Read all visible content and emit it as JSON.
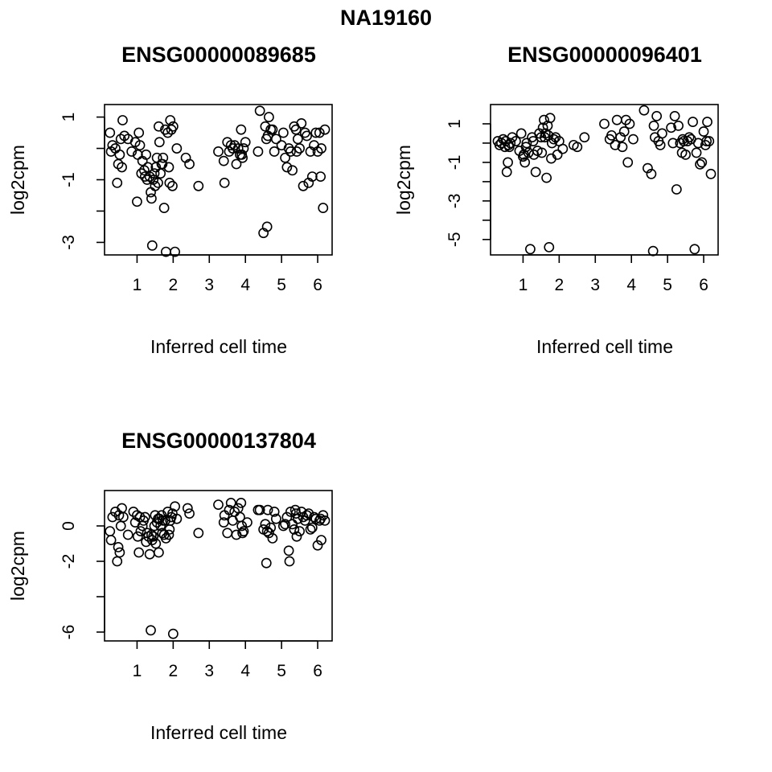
{
  "figure": {
    "title": "NA19160"
  },
  "chart_data": [
    {
      "type": "scatter",
      "title": "ENSG00000089685",
      "xlabel": "Inferred cell time",
      "ylabel": "log2cpm",
      "xlim": [
        0.1,
        6.4
      ],
      "ylim": [
        -3.4,
        1.4
      ],
      "xticks": [
        1,
        2,
        3,
        4,
        5,
        6
      ],
      "xtick_labels": [
        "1",
        "2",
        "3",
        "4",
        "5",
        "6"
      ],
      "yticks": [
        -3,
        -2,
        -1,
        0,
        1
      ],
      "ytick_labels": [
        "-3",
        "",
        "-1",
        "",
        "1"
      ],
      "x": [
        0.25,
        0.28,
        0.32,
        0.4,
        0.45,
        0.48,
        0.52,
        0.55,
        0.58,
        0.6,
        0.65,
        0.75,
        0.85,
        0.95,
        1.0,
        1.02,
        1.05,
        1.08,
        1.12,
        1.15,
        1.2,
        1.22,
        1.25,
        1.28,
        1.3,
        1.35,
        1.38,
        1.4,
        1.42,
        1.45,
        1.48,
        1.5,
        1.52,
        1.55,
        1.58,
        1.6,
        1.62,
        1.65,
        1.68,
        1.7,
        1.72,
        1.75,
        1.78,
        1.8,
        1.85,
        1.88,
        1.9,
        1.92,
        1.95,
        1.98,
        2.0,
        2.05,
        2.1,
        2.35,
        2.45,
        2.7,
        3.25,
        3.4,
        3.42,
        3.5,
        3.55,
        3.6,
        3.65,
        3.7,
        3.75,
        3.8,
        3.85,
        3.88,
        3.9,
        3.92,
        3.95,
        4.0,
        4.35,
        4.4,
        4.5,
        4.55,
        4.58,
        4.6,
        4.62,
        4.65,
        4.7,
        4.75,
        4.8,
        4.85,
        5.0,
        5.05,
        5.1,
        5.15,
        5.2,
        5.25,
        5.3,
        5.35,
        5.4,
        5.42,
        5.45,
        5.5,
        5.55,
        5.6,
        5.65,
        5.7,
        5.75,
        5.8,
        5.85,
        5.9,
        5.95,
        6.0,
        6.05,
        6.08,
        6.1,
        6.15,
        6.2
      ],
      "y": [
        0.5,
        -0.1,
        0.1,
        0.0,
        -1.1,
        -0.5,
        -0.2,
        0.3,
        -0.6,
        0.9,
        0.4,
        0.3,
        -0.1,
        0.2,
        -1.7,
        -0.2,
        0.5,
        0.1,
        -0.8,
        -0.4,
        -0.7,
        -0.9,
        -0.2,
        -1.0,
        -0.6,
        -0.9,
        -1.4,
        -1.6,
        -3.1,
        -1.0,
        -0.8,
        -1.2,
        -0.6,
        -0.3,
        -1.1,
        0.7,
        0.2,
        -0.8,
        -0.5,
        -0.5,
        -0.3,
        -1.9,
        0.6,
        -3.3,
        0.5,
        -0.6,
        -1.1,
        0.9,
        0.6,
        -1.2,
        0.7,
        -3.3,
        0.0,
        -0.3,
        -0.5,
        -1.2,
        -0.1,
        -0.4,
        -1.1,
        0.2,
        -0.1,
        0.1,
        0.0,
        0.1,
        -0.5,
        0.0,
        -0.2,
        0.6,
        -0.2,
        -0.3,
        0.0,
        0.2,
        -0.1,
        1.2,
        -2.7,
        0.7,
        0.3,
        -2.5,
        0.4,
        1.0,
        0.6,
        0.6,
        -0.1,
        0.3,
        0.1,
        0.5,
        -0.3,
        -0.6,
        0.0,
        -0.1,
        -0.7,
        0.7,
        0.6,
        -0.1,
        0.3,
        0.0,
        0.8,
        -1.2,
        0.5,
        0.4,
        -1.1,
        -0.1,
        -0.9,
        0.1,
        0.5,
        -0.1,
        0.5,
        -0.9,
        0.0,
        -1.9,
        0.6
      ]
    },
    {
      "type": "scatter",
      "title": "ENSG00000096401",
      "xlabel": "Inferred cell time",
      "ylabel": "log2cpm",
      "xlim": [
        0.1,
        6.4
      ],
      "ylim": [
        -5.8,
        2.0
      ],
      "xticks": [
        1,
        2,
        3,
        4,
        5,
        6
      ],
      "xtick_labels": [
        "1",
        "2",
        "3",
        "4",
        "5",
        "6"
      ],
      "yticks": [
        -5,
        -4,
        -3,
        -2,
        -1,
        0,
        1
      ],
      "ytick_labels": [
        "-5",
        "",
        "-3",
        "",
        "-1",
        "",
        "1"
      ],
      "x": [
        0.3,
        0.35,
        0.4,
        0.45,
        0.5,
        0.52,
        0.55,
        0.58,
        0.6,
        0.62,
        0.65,
        0.7,
        0.8,
        0.9,
        0.95,
        1.0,
        1.02,
        1.05,
        1.08,
        1.1,
        1.15,
        1.2,
        1.25,
        1.28,
        1.3,
        1.35,
        1.4,
        1.45,
        1.5,
        1.52,
        1.55,
        1.58,
        1.6,
        1.62,
        1.65,
        1.68,
        1.7,
        1.72,
        1.75,
        1.78,
        1.8,
        1.85,
        1.9,
        1.95,
        2.0,
        2.1,
        2.4,
        2.5,
        2.7,
        3.25,
        3.4,
        3.45,
        3.55,
        3.6,
        3.7,
        3.75,
        3.8,
        3.85,
        3.9,
        3.95,
        4.05,
        4.35,
        4.45,
        4.55,
        4.6,
        4.62,
        4.65,
        4.7,
        4.75,
        4.8,
        4.85,
        5.1,
        5.15,
        5.2,
        5.25,
        5.3,
        5.35,
        5.4,
        5.42,
        5.45,
        5.5,
        5.55,
        5.6,
        5.65,
        5.7,
        5.75,
        5.8,
        5.85,
        5.9,
        5.95,
        6.0,
        6.05,
        6.08,
        6.1,
        6.15,
        6.2
      ],
      "y": [
        0.1,
        -0.1,
        0.0,
        0.2,
        -0.2,
        0.1,
        -1.5,
        -1.0,
        -0.1,
        -0.2,
        0.0,
        0.3,
        0.1,
        -0.4,
        0.5,
        -0.7,
        -0.6,
        -1.0,
        -0.2,
        0.0,
        -0.5,
        -5.5,
        0.3,
        0.1,
        -0.6,
        -1.5,
        -0.4,
        0.5,
        0.3,
        -0.5,
        0.8,
        1.2,
        0.3,
        0.5,
        -1.8,
        0.9,
        0.4,
        -5.4,
        1.3,
        -0.8,
        0.0,
        0.2,
        0.3,
        -0.6,
        0.1,
        -0.3,
        -0.1,
        -0.2,
        0.3,
        1.0,
        0.2,
        0.4,
        -0.1,
        1.2,
        0.3,
        -0.2,
        0.6,
        1.2,
        -1.0,
        1.0,
        0.2,
        1.7,
        -1.3,
        -1.6,
        -5.6,
        0.9,
        0.3,
        1.4,
        0.1,
        -0.1,
        0.5,
        0.8,
        0.0,
        1.4,
        -2.4,
        0.9,
        0.0,
        -0.5,
        0.2,
        0.1,
        -0.6,
        0.1,
        0.3,
        0.2,
        1.1,
        -5.5,
        -0.5,
        0.0,
        -1.1,
        -1.0,
        0.6,
        -0.1,
        0.1,
        1.1,
        0.1,
        -1.6
      ]
    },
    {
      "type": "scatter",
      "title": "ENSG00000137804",
      "xlabel": "Inferred cell time",
      "ylabel": "log2cpm",
      "xlim": [
        0.1,
        6.4
      ],
      "ylim": [
        -6.5,
        2.0
      ],
      "xticks": [
        1,
        2,
        3,
        4,
        5,
        6
      ],
      "xtick_labels": [
        "1",
        "2",
        "3",
        "4",
        "5",
        "6"
      ],
      "yticks": [
        -6,
        -4,
        -2,
        0
      ],
      "ytick_labels": [
        "-6",
        "",
        "-2",
        "0"
      ],
      "x": [
        0.25,
        0.28,
        0.32,
        0.4,
        0.45,
        0.48,
        0.5,
        0.52,
        0.55,
        0.58,
        0.62,
        0.75,
        0.9,
        0.95,
        1.0,
        1.02,
        1.05,
        1.08,
        1.1,
        1.15,
        1.18,
        1.22,
        1.25,
        1.28,
        1.32,
        1.35,
        1.38,
        1.4,
        1.42,
        1.45,
        1.48,
        1.5,
        1.52,
        1.55,
        1.58,
        1.6,
        1.62,
        1.65,
        1.68,
        1.7,
        1.72,
        1.75,
        1.78,
        1.8,
        1.85,
        1.88,
        1.9,
        1.92,
        1.95,
        1.98,
        2.0,
        2.05,
        2.1,
        2.4,
        2.45,
        2.7,
        3.25,
        3.4,
        3.42,
        3.5,
        3.55,
        3.6,
        3.65,
        3.7,
        3.75,
        3.8,
        3.85,
        3.88,
        3.9,
        3.92,
        3.95,
        4.05,
        4.35,
        4.4,
        4.5,
        4.55,
        4.58,
        4.6,
        4.62,
        4.65,
        4.7,
        4.75,
        4.8,
        4.85,
        5.05,
        5.1,
        5.15,
        5.2,
        5.22,
        5.25,
        5.3,
        5.35,
        5.38,
        5.4,
        5.42,
        5.45,
        5.5,
        5.55,
        5.6,
        5.65,
        5.7,
        5.75,
        5.8,
        5.85,
        5.9,
        5.95,
        6.0,
        6.05,
        6.08,
        6.1,
        6.15,
        6.2
      ],
      "y": [
        -0.3,
        -0.8,
        0.5,
        0.8,
        -2.0,
        -1.2,
        0.6,
        -1.5,
        0.0,
        1.0,
        0.5,
        -0.5,
        0.8,
        0.2,
        0.6,
        -0.6,
        -1.5,
        0.5,
        -0.3,
        0.0,
        0.3,
        0.5,
        -0.9,
        -0.4,
        -0.6,
        -1.6,
        -5.9,
        -0.5,
        -0.8,
        -0.6,
        0.0,
        0.6,
        -1.0,
        0.2,
        0.4,
        -1.5,
        0.4,
        0.0,
        0.6,
        -0.4,
        0.3,
        -0.5,
        0.3,
        -0.7,
        0.8,
        -0.5,
        -0.2,
        0.3,
        0.5,
        0.7,
        -6.1,
        1.1,
        0.4,
        1.0,
        0.7,
        -0.4,
        1.2,
        0.2,
        0.6,
        -0.4,
        0.9,
        1.3,
        0.3,
        0.8,
        -0.5,
        1.0,
        0.5,
        1.3,
        0.0,
        -0.4,
        -0.3,
        0.2,
        0.9,
        0.9,
        -0.2,
        0.1,
        -2.1,
        -0.3,
        0.9,
        -0.4,
        -0.1,
        -0.7,
        0.8,
        0.4,
        0.0,
        0.1,
        0.5,
        -1.4,
        -2.0,
        0.8,
        0.1,
        -0.2,
        0.9,
        0.7,
        -0.6,
        0.4,
        -0.3,
        0.8,
        0.5,
        0.3,
        0.6,
        0.7,
        -0.2,
        -0.1,
        0.5,
        0.4,
        -1.1,
        0.3,
        0.4,
        -0.8,
        0.6,
        0.3
      ]
    }
  ]
}
